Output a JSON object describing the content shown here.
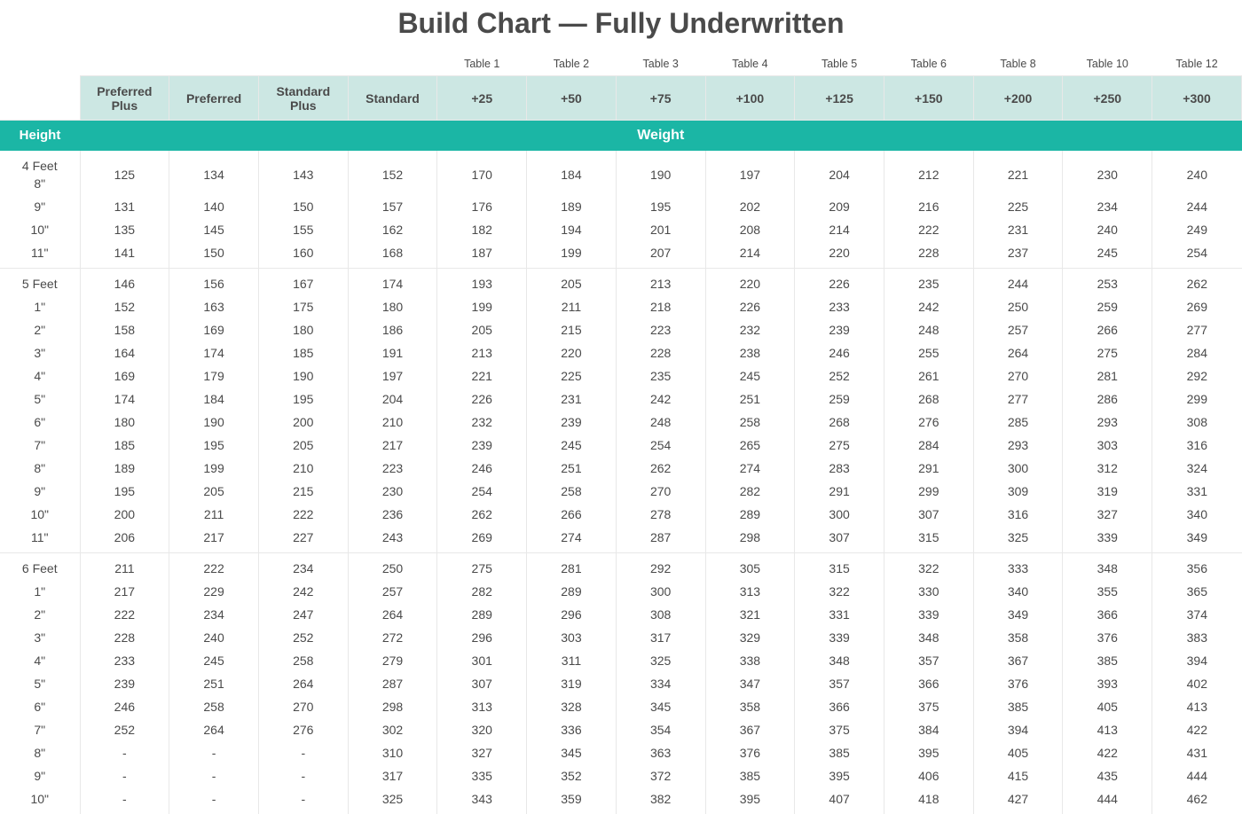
{
  "title": "Build Chart — Fully Underwritten",
  "type": "table",
  "colors": {
    "header_bg": "#cce7e3",
    "axis_bg": "#1bb6a5",
    "axis_text": "#ffffff",
    "text": "#4a4a4a",
    "border": "#e8e8e8",
    "background": "#ffffff"
  },
  "axis_labels": {
    "height": "Height",
    "weight": "Weight"
  },
  "table_number_labels": [
    "",
    "",
    "",
    "",
    "Table 1",
    "Table 2",
    "Table 3",
    "Table 4",
    "Table 5",
    "Table 6",
    "Table 8",
    "Table 10",
    "Table 12"
  ],
  "column_headers": [
    "Preferred Plus",
    "Preferred",
    "Standard Plus",
    "Standard",
    "+25",
    "+50",
    "+75",
    "+100",
    "+125",
    "+150",
    "+200",
    "+250",
    "+300"
  ],
  "sections": [
    {
      "feet_label": "4 Feet",
      "rows": [
        {
          "h": "8\"",
          "v": [
            125,
            134,
            143,
            152,
            170,
            184,
            190,
            197,
            204,
            212,
            221,
            230,
            240
          ]
        },
        {
          "h": "9\"",
          "v": [
            131,
            140,
            150,
            157,
            176,
            189,
            195,
            202,
            209,
            216,
            225,
            234,
            244
          ]
        },
        {
          "h": "10\"",
          "v": [
            135,
            145,
            155,
            162,
            182,
            194,
            201,
            208,
            214,
            222,
            231,
            240,
            249
          ]
        },
        {
          "h": "11\"",
          "v": [
            141,
            150,
            160,
            168,
            187,
            199,
            207,
            214,
            220,
            228,
            237,
            245,
            254
          ]
        }
      ]
    },
    {
      "feet_label": "5 Feet",
      "rows": [
        {
          "h": "",
          "v": [
            146,
            156,
            167,
            174,
            193,
            205,
            213,
            220,
            226,
            235,
            244,
            253,
            262
          ]
        },
        {
          "h": "1\"",
          "v": [
            152,
            163,
            175,
            180,
            199,
            211,
            218,
            226,
            233,
            242,
            250,
            259,
            269
          ]
        },
        {
          "h": "2\"",
          "v": [
            158,
            169,
            180,
            186,
            205,
            215,
            223,
            232,
            239,
            248,
            257,
            266,
            277
          ]
        },
        {
          "h": "3\"",
          "v": [
            164,
            174,
            185,
            191,
            213,
            220,
            228,
            238,
            246,
            255,
            264,
            275,
            284
          ]
        },
        {
          "h": "4\"",
          "v": [
            169,
            179,
            190,
            197,
            221,
            225,
            235,
            245,
            252,
            261,
            270,
            281,
            292
          ]
        },
        {
          "h": "5\"",
          "v": [
            174,
            184,
            195,
            204,
            226,
            231,
            242,
            251,
            259,
            268,
            277,
            286,
            299
          ]
        },
        {
          "h": "6\"",
          "v": [
            180,
            190,
            200,
            210,
            232,
            239,
            248,
            258,
            268,
            276,
            285,
            293,
            308
          ]
        },
        {
          "h": "7\"",
          "v": [
            185,
            195,
            205,
            217,
            239,
            245,
            254,
            265,
            275,
            284,
            293,
            303,
            316
          ]
        },
        {
          "h": "8\"",
          "v": [
            189,
            199,
            210,
            223,
            246,
            251,
            262,
            274,
            283,
            291,
            300,
            312,
            324
          ]
        },
        {
          "h": "9\"",
          "v": [
            195,
            205,
            215,
            230,
            254,
            258,
            270,
            282,
            291,
            299,
            309,
            319,
            331
          ]
        },
        {
          "h": "10\"",
          "v": [
            200,
            211,
            222,
            236,
            262,
            266,
            278,
            289,
            300,
            307,
            316,
            327,
            340
          ]
        },
        {
          "h": "11\"",
          "v": [
            206,
            217,
            227,
            243,
            269,
            274,
            287,
            298,
            307,
            315,
            325,
            339,
            349
          ]
        }
      ]
    },
    {
      "feet_label": "6 Feet",
      "rows": [
        {
          "h": "",
          "v": [
            211,
            222,
            234,
            250,
            275,
            281,
            292,
            305,
            315,
            322,
            333,
            348,
            356
          ]
        },
        {
          "h": "1\"",
          "v": [
            217,
            229,
            242,
            257,
            282,
            289,
            300,
            313,
            322,
            330,
            340,
            355,
            365
          ]
        },
        {
          "h": "2\"",
          "v": [
            222,
            234,
            247,
            264,
            289,
            296,
            308,
            321,
            331,
            339,
            349,
            366,
            374
          ]
        },
        {
          "h": "3\"",
          "v": [
            228,
            240,
            252,
            272,
            296,
            303,
            317,
            329,
            339,
            348,
            358,
            376,
            383
          ]
        },
        {
          "h": "4\"",
          "v": [
            233,
            245,
            258,
            279,
            301,
            311,
            325,
            338,
            348,
            357,
            367,
            385,
            394
          ]
        },
        {
          "h": "5\"",
          "v": [
            239,
            251,
            264,
            287,
            307,
            319,
            334,
            347,
            357,
            366,
            376,
            393,
            402
          ]
        },
        {
          "h": "6\"",
          "v": [
            246,
            258,
            270,
            298,
            313,
            328,
            345,
            358,
            366,
            375,
            385,
            405,
            413
          ]
        },
        {
          "h": "7\"",
          "v": [
            252,
            264,
            276,
            302,
            320,
            336,
            354,
            367,
            375,
            384,
            394,
            413,
            422
          ]
        },
        {
          "h": "8\"",
          "v": [
            "-",
            "-",
            "-",
            310,
            327,
            345,
            363,
            376,
            385,
            395,
            405,
            422,
            431
          ]
        },
        {
          "h": "9\"",
          "v": [
            "-",
            "-",
            "-",
            317,
            335,
            352,
            372,
            385,
            395,
            406,
            415,
            435,
            444
          ]
        },
        {
          "h": "10\"",
          "v": [
            "-",
            "-",
            "-",
            325,
            343,
            359,
            382,
            395,
            407,
            418,
            427,
            444,
            462
          ]
        }
      ]
    }
  ]
}
